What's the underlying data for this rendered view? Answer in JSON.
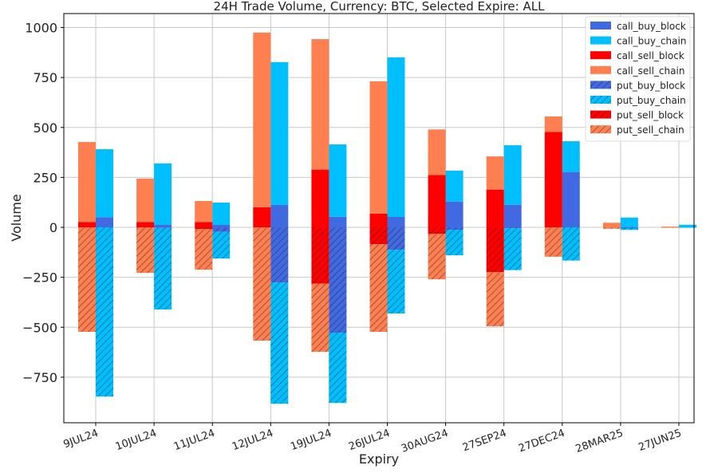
{
  "chart_data": {
    "type": "bar",
    "stacked": true,
    "title": "24H Trade Volume, Currency: BTC, Selected Expire: ALL",
    "xlabel": "Expiry",
    "ylabel": "Volume",
    "ylim": [
      -978,
      1070
    ],
    "yticks": [
      -750,
      -500,
      -250,
      0,
      250,
      500,
      750,
      1000
    ],
    "ytick_labels": [
      "−750",
      "−500",
      "−250",
      "0",
      "250",
      "500",
      "750",
      "1000"
    ],
    "grid": true,
    "legend_position": "top-right",
    "categories": [
      "9JUL24",
      "10JUL24",
      "11JUL24",
      "12JUL24",
      "19JUL24",
      "26JUL24",
      "30AUG24",
      "27SEP24",
      "27DEC24",
      "28MAR25",
      "27JUN25"
    ],
    "series": [
      {
        "name": "call_buy_block",
        "side": "buy",
        "color": "#4169E1",
        "hatch": false,
        "values": [
          51,
          12,
          12,
          112,
          53,
          52,
          129,
          113,
          277,
          0,
          0
        ]
      },
      {
        "name": "call_buy_chain",
        "side": "buy",
        "color": "#00BFFF",
        "hatch": false,
        "values": [
          340,
          308,
          112,
          715,
          362,
          799,
          155,
          298,
          154,
          49,
          13
        ]
      },
      {
        "name": "call_sell_block",
        "side": "sell",
        "color": "#FF0000",
        "hatch": false,
        "values": [
          27,
          27,
          27,
          100,
          289,
          69,
          262,
          189,
          478,
          0,
          0
        ]
      },
      {
        "name": "call_sell_chain",
        "side": "sell",
        "color": "#FF7F50",
        "hatch": false,
        "values": [
          400,
          217,
          105,
          875,
          653,
          662,
          228,
          166,
          77,
          23,
          4
        ]
      },
      {
        "name": "put_buy_block",
        "side": "buy",
        "color": "#4169E1",
        "hatch": true,
        "values": [
          0,
          -3,
          -23,
          -276,
          -527,
          -112,
          -12,
          -5,
          0,
          -4,
          0
        ]
      },
      {
        "name": "put_buy_chain",
        "side": "buy",
        "color": "#00BFFF",
        "hatch": true,
        "values": [
          -847,
          -408,
          -133,
          -607,
          -352,
          -319,
          -128,
          -209,
          -166,
          -9,
          -2
        ]
      },
      {
        "name": "put_sell_block",
        "side": "sell",
        "color": "#FF0000",
        "hatch": true,
        "values": [
          0,
          0,
          -8,
          0,
          -282,
          -84,
          -33,
          -224,
          0,
          0,
          0
        ]
      },
      {
        "name": "put_sell_chain",
        "side": "sell",
        "color": "#FF7F50",
        "hatch": true,
        "values": [
          -523,
          -228,
          -204,
          -567,
          -341,
          -439,
          -227,
          -271,
          -147,
          -7,
          -2
        ]
      }
    ]
  }
}
